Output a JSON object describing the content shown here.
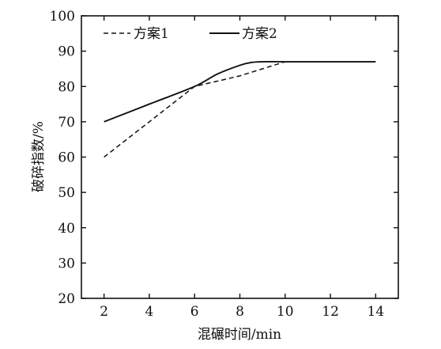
{
  "chart_data": {
    "type": "line",
    "xlabel": "混碾时间/min",
    "ylabel": "破碎指数/%",
    "xlim": [
      1,
      15
    ],
    "ylim": [
      20,
      100
    ],
    "xticks": [
      "2",
      "4",
      "6",
      "8",
      "10",
      "12",
      "14"
    ],
    "yticks": [
      "20",
      "30",
      "40",
      "50",
      "60",
      "70",
      "80",
      "90",
      "100"
    ],
    "grid": false,
    "legend_position": "top-left",
    "series": [
      {
        "name": "方案1",
        "style": "dashed",
        "x": [
          2,
          4,
          6,
          8,
          10
        ],
        "y": [
          60,
          70,
          80,
          83,
          87
        ]
      },
      {
        "name": "方案2",
        "style": "solid",
        "x": [
          2,
          4,
          6,
          7,
          8,
          8.5,
          9,
          10,
          12,
          14
        ],
        "y": [
          70,
          75,
          80,
          83.5,
          86,
          86.8,
          87,
          87,
          87,
          87
        ]
      }
    ]
  }
}
